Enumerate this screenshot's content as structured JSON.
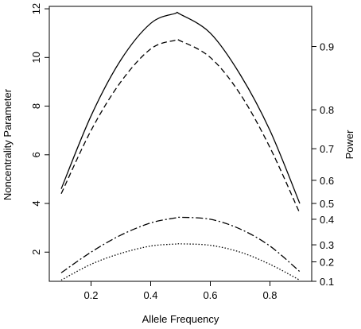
{
  "chart_data": {
    "type": "line",
    "title": "",
    "xlabel": "Allele Frequency",
    "ylabel": "Noncentrality Parameter",
    "y2label": "Power",
    "xlim": [
      0.1,
      0.9
    ],
    "ylim": [
      0.8,
      12.1
    ],
    "x_ticks": [
      0.2,
      0.4,
      0.6,
      0.8
    ],
    "x_tick_labels": [
      "0.2",
      "0.4",
      "0.6",
      "0.8"
    ],
    "y_ticks": [
      2,
      4,
      6,
      8,
      10,
      12
    ],
    "y_tick_labels": [
      "2",
      "4",
      "6",
      "8",
      "10",
      "12"
    ],
    "y2_ticks": [
      {
        "value": 0.1,
        "label": "0.1",
        "ncp": 0.8
      },
      {
        "value": 0.2,
        "label": "0.2",
        "ncp": 1.6
      },
      {
        "value": 0.3,
        "label": "0.3",
        "ncp": 2.3
      },
      {
        "value": 0.4,
        "label": "0.4",
        "ncp": 3.35
      },
      {
        "value": 0.5,
        "label": "0.5",
        "ncp": 4.0
      },
      {
        "value": 0.6,
        "label": "0.6",
        "ncp": 4.95
      },
      {
        "value": 0.7,
        "label": "0.7",
        "ncp": 6.25
      },
      {
        "value": 0.8,
        "label": "0.8",
        "ncp": 7.85
      },
      {
        "value": 0.9,
        "label": "0.9",
        "ncp": 10.45
      }
    ],
    "grid": false,
    "legend": "none",
    "x": [
      0.1,
      0.2,
      0.3,
      0.4,
      0.48,
      0.5,
      0.6,
      0.7,
      0.8,
      0.9
    ],
    "series": [
      {
        "line_style": "solid",
        "values": [
          4.6,
          7.6,
          9.9,
          11.4,
          11.8,
          11.77,
          11.0,
          9.3,
          7.0,
          4.0
        ]
      },
      {
        "line_style": "dashed",
        "values": [
          4.4,
          7.0,
          9.0,
          10.35,
          10.7,
          10.68,
          10.0,
          8.5,
          6.3,
          3.6
        ]
      },
      {
        "line_style": "dashdot",
        "values": [
          1.15,
          2.0,
          2.7,
          3.2,
          3.4,
          3.43,
          3.35,
          2.95,
          2.25,
          1.2
        ]
      },
      {
        "line_style": "dotted",
        "values": [
          0.85,
          1.5,
          1.95,
          2.25,
          2.33,
          2.34,
          2.28,
          2.0,
          1.5,
          0.85
        ]
      }
    ]
  }
}
